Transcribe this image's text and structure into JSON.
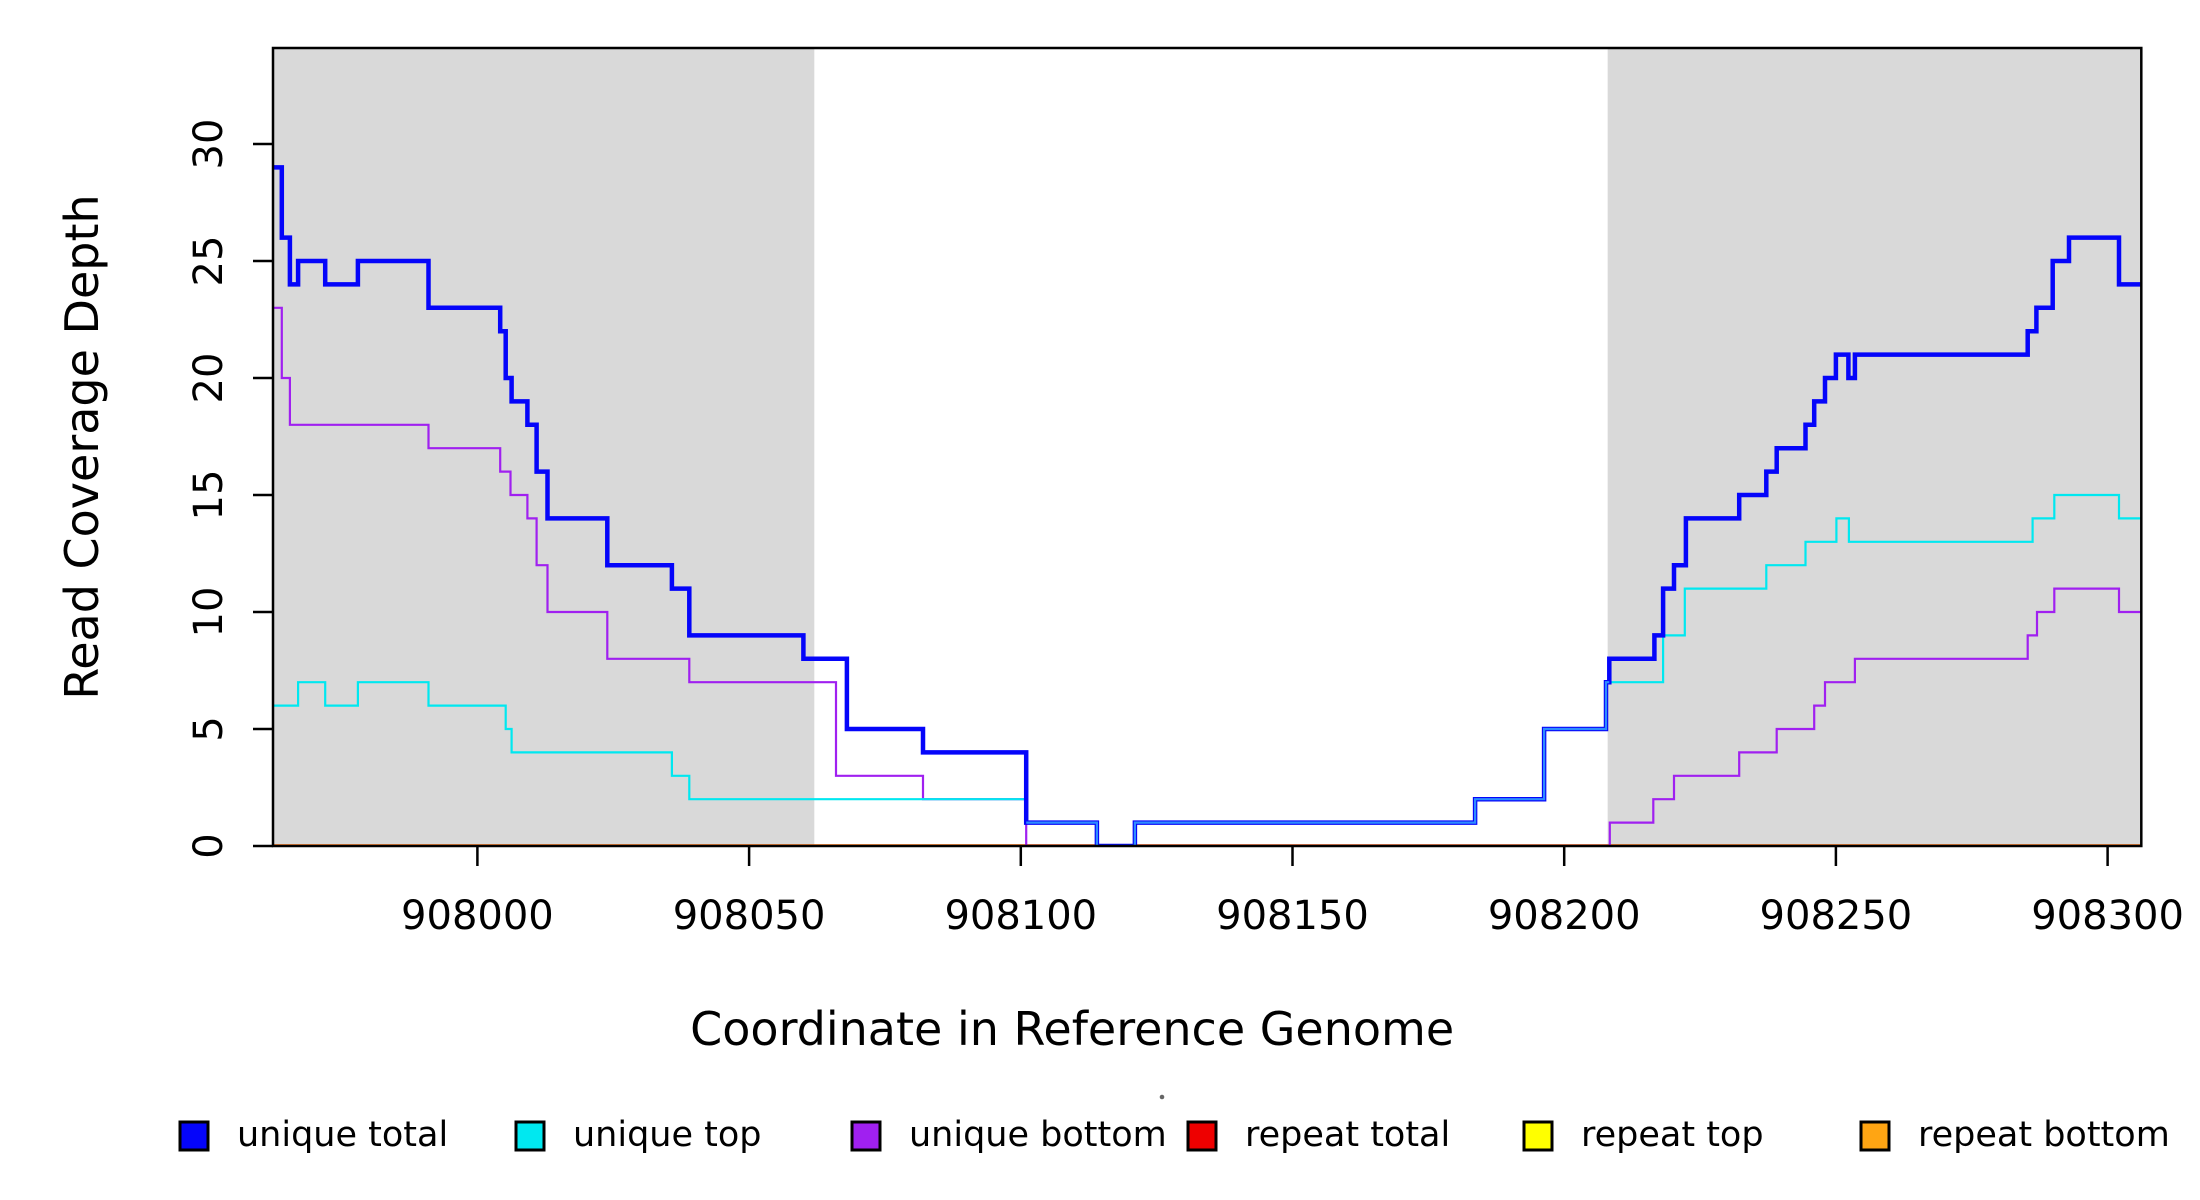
{
  "figure": {
    "x_axis_title": "Coordinate in Reference Genome",
    "y_axis_title": "Read Coverage Depth"
  },
  "chart_data": {
    "type": "line",
    "subtype": "step-coverage",
    "title": "",
    "xlabel": "Coordinate in Reference Genome",
    "ylabel": "Read Coverage Depth",
    "xlim": [
      907962.4,
      908306.2
    ],
    "ylim": [
      0,
      34.1
    ],
    "grid": false,
    "x_ticks": [
      908000,
      908050,
      908100,
      908150,
      908200,
      908250,
      908300
    ],
    "x_tick_labels": [
      "908000",
      "908050",
      "908100",
      "908150",
      "908200",
      "908250",
      "908300"
    ],
    "y_ticks": [
      0,
      5,
      10,
      15,
      20,
      25,
      30
    ],
    "y_tick_labels": [
      "0",
      "5",
      "10",
      "15",
      "20",
      "25",
      "30"
    ],
    "background_color": "#ffffff",
    "shade_color": "#d9d9d9",
    "axis_color": "#000000",
    "shaded_regions": [
      {
        "x0": 907962.4,
        "x1": 908062
      },
      {
        "x0": 908208.0,
        "x1": 908306.2
      }
    ],
    "series": [
      {
        "name": "repeat total",
        "color": "#ee0000",
        "width": 3.4,
        "points": [
          [
            907962.4,
            0
          ]
        ]
      },
      {
        "name": "repeat top",
        "color": "#ffff00",
        "width": 2.6,
        "points": [
          [
            907962.4,
            0
          ]
        ]
      },
      {
        "name": "repeat bottom",
        "color": "#ffa513",
        "width": 3.2,
        "points": [
          [
            907962.4,
            0
          ]
        ]
      },
      {
        "name": "unique bottom",
        "color": "#a020f0",
        "width": 2.2,
        "points": [
          [
            907962.4,
            23
          ],
          [
            907964,
            20
          ],
          [
            907965.5,
            18
          ],
          [
            907991,
            17
          ],
          [
            908004.2,
            16
          ],
          [
            908006.1,
            15
          ],
          [
            908009.2,
            14
          ],
          [
            908010.9,
            12
          ],
          [
            908012.9,
            10
          ],
          [
            908023.9,
            8
          ],
          [
            908039,
            7
          ],
          [
            908066,
            3
          ],
          [
            908082,
            2
          ],
          [
            908101,
            0
          ],
          [
            908208.4,
            1
          ],
          [
            908216.4,
            2
          ],
          [
            908220.2,
            3
          ],
          [
            908232.2,
            4
          ],
          [
            908239.1,
            5
          ],
          [
            908246,
            6
          ],
          [
            908248,
            7
          ],
          [
            908253.5,
            8
          ],
          [
            908285.3,
            9
          ],
          [
            908287,
            10
          ],
          [
            908290.2,
            11
          ],
          [
            908302.1,
            10
          ]
        ]
      },
      {
        "name": "unique top",
        "color": "#00e8f0",
        "width": 2.2,
        "points": [
          [
            907962.4,
            6
          ],
          [
            907967,
            7
          ],
          [
            907972,
            6
          ],
          [
            907978,
            7
          ],
          [
            907991,
            6
          ],
          [
            908005.2,
            5
          ],
          [
            908006.3,
            4
          ],
          [
            908035.8,
            3
          ],
          [
            908039,
            2
          ],
          [
            908101,
            1
          ],
          [
            908114,
            0
          ],
          [
            908121,
            1
          ],
          [
            908183.6,
            2
          ],
          [
            908196.3,
            5
          ],
          [
            908207.7,
            7
          ],
          [
            908218.2,
            9
          ],
          [
            908222.2,
            11
          ],
          [
            908237.2,
            12
          ],
          [
            908244.4,
            13
          ],
          [
            908250.1,
            14
          ],
          [
            908252.4,
            13
          ],
          [
            908286.2,
            14
          ],
          [
            908290.2,
            15
          ],
          [
            908302.1,
            14
          ]
        ]
      },
      {
        "name": "unique total",
        "color": "#0505fa",
        "width": 4.5,
        "points": [
          [
            907962.4,
            29
          ],
          [
            907964,
            26
          ],
          [
            907965.5,
            24
          ],
          [
            907967,
            25
          ],
          [
            907972,
            24
          ],
          [
            907978,
            25
          ],
          [
            907991,
            23
          ],
          [
            908004.2,
            22
          ],
          [
            908005.2,
            20
          ],
          [
            908006.3,
            19
          ],
          [
            908009.2,
            18
          ],
          [
            908010.9,
            16
          ],
          [
            908012.9,
            14
          ],
          [
            908023.9,
            12
          ],
          [
            908035.8,
            11
          ],
          [
            908039,
            9
          ],
          [
            908060,
            8
          ],
          [
            908068,
            5
          ],
          [
            908082,
            4
          ],
          [
            908101,
            1
          ],
          [
            908114,
            0
          ],
          [
            908121,
            1
          ],
          [
            908183.6,
            2
          ],
          [
            908196.3,
            5
          ],
          [
            908207.7,
            7
          ],
          [
            908208.3,
            8
          ],
          [
            908216.6,
            9
          ],
          [
            908218.2,
            11
          ],
          [
            908220.2,
            12
          ],
          [
            908222.4,
            14
          ],
          [
            908232.2,
            15
          ],
          [
            908237.2,
            16
          ],
          [
            908239.1,
            17
          ],
          [
            908244.4,
            18
          ],
          [
            908246,
            19
          ],
          [
            908248,
            20
          ],
          [
            908250,
            21
          ],
          [
            908252.3,
            20
          ],
          [
            908253.5,
            21
          ],
          [
            908285.3,
            22
          ],
          [
            908286.9,
            23
          ],
          [
            908289.9,
            25
          ],
          [
            908292.9,
            26
          ],
          [
            908302.1,
            24
          ]
        ]
      },
      {
        "name": "unique total+top overlap",
        "color": "#2e8cff",
        "width": 2.2,
        "xend": 908208.3,
        "points": [
          [
            908101,
            1
          ],
          [
            908114,
            0
          ],
          [
            908121,
            1
          ],
          [
            908183.6,
            2
          ],
          [
            908196.3,
            5
          ],
          [
            908207.7,
            7
          ]
        ]
      }
    ],
    "legend": {
      "position": "bottom",
      "items": [
        {
          "label": "unique total",
          "color": "#0505fa"
        },
        {
          "label": "unique top",
          "color": "#00e8f0"
        },
        {
          "label": "unique bottom",
          "color": "#a020f0"
        },
        {
          "label": "repeat total",
          "color": "#ee0000"
        },
        {
          "label": "repeat top",
          "color": "#ffff00"
        },
        {
          "label": "repeat bottom",
          "color": "#ffa513"
        }
      ]
    }
  }
}
